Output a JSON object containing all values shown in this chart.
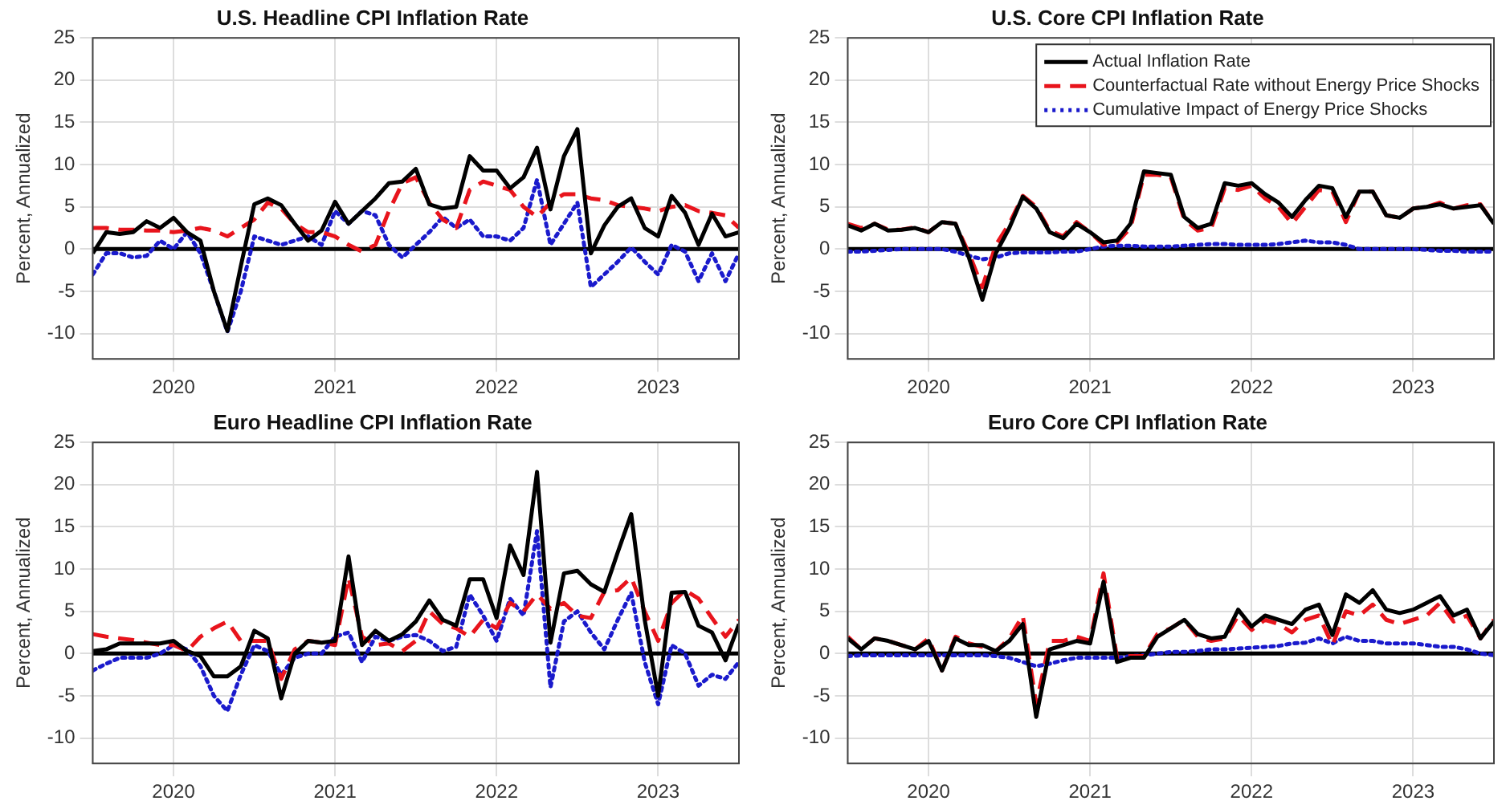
{
  "chart_data": [
    {
      "type": "line",
      "title": "U.S. Headline CPI Inflation Rate",
      "ylabel": "Percent, Annualized",
      "x": [
        "2019-07",
        "2019-08",
        "2019-09",
        "2019-10",
        "2019-11",
        "2019-12",
        "2020-01",
        "2020-02",
        "2020-03",
        "2020-04",
        "2020-05",
        "2020-06",
        "2020-07",
        "2020-08",
        "2020-09",
        "2020-10",
        "2020-11",
        "2020-12",
        "2021-01",
        "2021-02",
        "2021-03",
        "2021-04",
        "2021-05",
        "2021-06",
        "2021-07",
        "2021-08",
        "2021-09",
        "2021-10",
        "2021-11",
        "2021-12",
        "2022-01",
        "2022-02",
        "2022-03",
        "2022-04",
        "2022-05",
        "2022-06",
        "2022-07",
        "2022-08",
        "2022-09",
        "2022-10",
        "2022-11",
        "2022-12",
        "2023-01",
        "2023-02",
        "2023-03",
        "2023-04",
        "2023-05",
        "2023-06",
        "2023-07"
      ],
      "xlim": [
        "2019-07",
        "2023-07"
      ],
      "xticks": [
        "2020",
        "2021",
        "2022",
        "2023"
      ],
      "ylim": [
        -13,
        25
      ],
      "yticks": [
        -10,
        -5,
        0,
        5,
        10,
        15,
        20,
        25
      ],
      "grid": true,
      "ref_lines": [
        {
          "axis": "y",
          "value": 0,
          "color": "#000000"
        }
      ],
      "series": [
        {
          "color": "#000000",
          "line_style": "solid",
          "values": [
            -0.5,
            2.0,
            1.8,
            2.0,
            3.3,
            2.5,
            3.7,
            2.0,
            1.0,
            -5,
            -9.7,
            -2,
            5.3,
            6.0,
            5.2,
            3,
            1.0,
            2.2,
            5.6,
            3,
            4.5,
            6,
            7.8,
            8,
            9.5,
            5.3,
            4.8,
            5.0,
            11,
            9.3,
            9.3,
            7.2,
            8.5,
            12.0,
            4.7,
            11,
            14.2,
            -0.5,
            2.8,
            5,
            6,
            2.5,
            1.5,
            6.3,
            4.3,
            0.5,
            4.2,
            1.5,
            2.0
          ]
        },
        {
          "color": "#e8141c",
          "line_style": "dashed",
          "values": [
            2.5,
            2.5,
            2.3,
            2.3,
            2.2,
            2.2,
            2.0,
            2.2,
            2.5,
            2.2,
            1.5,
            2.5,
            3.5,
            5.5,
            4.8,
            3.0,
            2.0,
            2.0,
            1.5,
            0.5,
            -0.3,
            0.5,
            4.5,
            7.8,
            8.5,
            5.5,
            3.5,
            2.5,
            7.0,
            8.0,
            7.5,
            7.0,
            5.0,
            3.8,
            5.5,
            6.5,
            6.5,
            6.0,
            5.8,
            5.2,
            5.0,
            4.8,
            4.5,
            5.0,
            5.2,
            4.5,
            4.3,
            4.0,
            2.5
          ]
        },
        {
          "color": "#1a1acc",
          "line_style": "dotted",
          "values": [
            -3,
            -0.5,
            -0.5,
            -1.0,
            -0.8,
            1.0,
            0.0,
            2.0,
            -0.5,
            -5,
            -9.8,
            -5,
            1.5,
            1.0,
            0.5,
            1.0,
            1.5,
            0.5,
            4.5,
            3.0,
            4.5,
            4.0,
            0.5,
            -1.0,
            0.5,
            2.0,
            3.8,
            2.5,
            3.5,
            1.5,
            1.5,
            1.0,
            2.5,
            8.2,
            0.5,
            3.0,
            5.5,
            -4.5,
            -3.0,
            -1.5,
            0.2,
            -1.5,
            -3.0,
            0.5,
            -0.3,
            -3.8,
            -0.5,
            -3.8,
            -0.5
          ]
        }
      ]
    },
    {
      "type": "line",
      "title": "U.S. Core CPI Inflation Rate",
      "ylabel": "Percent, Annualized",
      "x": [
        "2019-07",
        "2019-08",
        "2019-09",
        "2019-10",
        "2019-11",
        "2019-12",
        "2020-01",
        "2020-02",
        "2020-03",
        "2020-04",
        "2020-05",
        "2020-06",
        "2020-07",
        "2020-08",
        "2020-09",
        "2020-10",
        "2020-11",
        "2020-12",
        "2021-01",
        "2021-02",
        "2021-03",
        "2021-04",
        "2021-05",
        "2021-06",
        "2021-07",
        "2021-08",
        "2021-09",
        "2021-10",
        "2021-11",
        "2021-12",
        "2022-01",
        "2022-02",
        "2022-03",
        "2022-04",
        "2022-05",
        "2022-06",
        "2022-07",
        "2022-08",
        "2022-09",
        "2022-10",
        "2022-11",
        "2022-12",
        "2023-01",
        "2023-02",
        "2023-03",
        "2023-04",
        "2023-05",
        "2023-06",
        "2023-07"
      ],
      "xlim": [
        "2019-07",
        "2023-07"
      ],
      "xticks": [
        "2020",
        "2021",
        "2022",
        "2023"
      ],
      "ylim": [
        -13,
        25
      ],
      "yticks": [
        -10,
        -5,
        0,
        5,
        10,
        15,
        20,
        25
      ],
      "grid": true,
      "legend": "top right",
      "ref_lines": [
        {
          "axis": "y",
          "value": 0,
          "color": "#000000"
        }
      ],
      "series": [
        {
          "name": "Actual Inflation Rate",
          "color": "#000000",
          "line_style": "solid",
          "values": [
            2.8,
            2.2,
            3.0,
            2.2,
            2.3,
            2.5,
            2.0,
            3.2,
            3.0,
            -1.0,
            -6.0,
            -0.5,
            2.5,
            6.2,
            4.8,
            2.0,
            1.3,
            3.0,
            2.0,
            0.8,
            1.0,
            3.0,
            9.2,
            9.0,
            8.8,
            3.8,
            2.5,
            3.0,
            7.8,
            7.5,
            7.8,
            6.5,
            5.5,
            3.8,
            5.8,
            7.5,
            7.2,
            3.8,
            6.8,
            6.8,
            4.0,
            3.7,
            4.8,
            5.0,
            5.3,
            4.8,
            5.0,
            5.2,
            3.0
          ]
        },
        {
          "name": "Counterfactual Rate without Energy Price Shocks",
          "color": "#e8141c",
          "line_style": "dashed",
          "values": [
            3.0,
            2.5,
            3.0,
            2.3,
            2.3,
            2.6,
            2.0,
            3.2,
            3.0,
            -0.5,
            -4.5,
            0.5,
            3.0,
            6.3,
            5.0,
            2.2,
            1.5,
            3.2,
            2.0,
            0.5,
            0.8,
            2.5,
            8.8,
            8.8,
            8.5,
            3.5,
            2.2,
            2.5,
            7.2,
            7.0,
            7.5,
            6.0,
            5.0,
            3.0,
            5.0,
            7.0,
            6.8,
            3.2,
            6.8,
            6.8,
            4.0,
            3.7,
            4.8,
            5.0,
            5.5,
            4.8,
            5.2,
            5.3,
            3.0
          ]
        },
        {
          "name": "Cumulative Impact of Energy Price Shocks",
          "color": "#1a1acc",
          "line_style": "dotted",
          "values": [
            -0.3,
            -0.3,
            -0.2,
            -0.1,
            0,
            0,
            0,
            0,
            -0.3,
            -0.8,
            -1.2,
            -1.0,
            -0.5,
            -0.4,
            -0.4,
            -0.4,
            -0.3,
            -0.3,
            0,
            0.3,
            0.4,
            0.4,
            0.3,
            0.3,
            0.3,
            0.4,
            0.5,
            0.6,
            0.6,
            0.5,
            0.5,
            0.5,
            0.6,
            0.8,
            1.0,
            0.8,
            0.8,
            0.5,
            0,
            0,
            0,
            0,
            0,
            -0.1,
            -0.2,
            -0.2,
            -0.3,
            -0.3,
            -0.3
          ]
        }
      ]
    },
    {
      "type": "line",
      "title": "Euro Headline CPI Inflation Rate",
      "ylabel": "Percent, Annualized",
      "x": [
        "2019-07",
        "2019-08",
        "2019-09",
        "2019-10",
        "2019-11",
        "2019-12",
        "2020-01",
        "2020-02",
        "2020-03",
        "2020-04",
        "2020-05",
        "2020-06",
        "2020-07",
        "2020-08",
        "2020-09",
        "2020-10",
        "2020-11",
        "2020-12",
        "2021-01",
        "2021-02",
        "2021-03",
        "2021-04",
        "2021-05",
        "2021-06",
        "2021-07",
        "2021-08",
        "2021-09",
        "2021-10",
        "2021-11",
        "2021-12",
        "2022-01",
        "2022-02",
        "2022-03",
        "2022-04",
        "2022-05",
        "2022-06",
        "2022-07",
        "2022-08",
        "2022-09",
        "2022-10",
        "2022-11",
        "2022-12",
        "2023-01",
        "2023-02",
        "2023-03",
        "2023-04",
        "2023-05",
        "2023-06",
        "2023-07"
      ],
      "xlim": [
        "2019-07",
        "2023-07"
      ],
      "xticks": [
        "2020",
        "2021",
        "2022",
        "2023"
      ],
      "ylim": [
        -13,
        25
      ],
      "yticks": [
        -10,
        -5,
        0,
        5,
        10,
        15,
        20,
        25
      ],
      "grid": true,
      "ref_lines": [
        {
          "axis": "y",
          "value": 0,
          "color": "#000000"
        }
      ],
      "series": [
        {
          "color": "#000000",
          "line_style": "solid",
          "values": [
            0.3,
            0.5,
            1.2,
            1.2,
            1.2,
            1.2,
            1.5,
            0.3,
            -0.3,
            -2.7,
            -2.7,
            -1.5,
            2.7,
            1.8,
            -5.3,
            0.0,
            1.5,
            1.3,
            1.5,
            11.5,
            1.0,
            2.7,
            1.5,
            2.3,
            3.8,
            6.3,
            4.0,
            3.3,
            8.8,
            8.8,
            4.2,
            12.8,
            9.3,
            21.5,
            1.3,
            9.5,
            9.8,
            8.2,
            7.3,
            12.0,
            16.5,
            4.0,
            -5.0,
            7.2,
            7.3,
            3.3,
            2.5,
            -0.8,
            3.5
          ]
        },
        {
          "color": "#e8141c",
          "line_style": "dashed",
          "values": [
            2.3,
            2.0,
            1.8,
            1.6,
            1.3,
            1.0,
            1.0,
            0.3,
            2.0,
            3.0,
            3.8,
            1.5,
            1.5,
            1.5,
            -3.0,
            0.5,
            1.5,
            1.3,
            1.0,
            9.0,
            2.0,
            1.0,
            1.2,
            0.3,
            1.5,
            5.0,
            3.5,
            3.0,
            2.0,
            4.0,
            3.0,
            6.0,
            5.0,
            7.0,
            5.3,
            6.0,
            4.5,
            4.2,
            7.3,
            7.5,
            9.0,
            5.0,
            1.5,
            6.0,
            7.5,
            6.5,
            4.2,
            2.0,
            4.0
          ]
        },
        {
          "color": "#1a1acc",
          "line_style": "dotted",
          "values": [
            -2.0,
            -1.2,
            -0.5,
            -0.5,
            -0.5,
            0,
            1.0,
            0.5,
            -1.5,
            -5.0,
            -6.8,
            -2.5,
            1.0,
            0.3,
            -2.5,
            -0.5,
            0,
            0,
            2.0,
            2.5,
            -1.0,
            2.0,
            1.5,
            2.0,
            2.2,
            1.5,
            0.3,
            0.8,
            7.0,
            4.5,
            1.5,
            6.5,
            4.5,
            14.5,
            -4.0,
            3.8,
            5.0,
            2.5,
            0.5,
            4.0,
            7.2,
            -1.0,
            -6.0,
            1.0,
            0.0,
            -3.8,
            -2.5,
            -3.0,
            -1.0
          ]
        }
      ]
    },
    {
      "type": "line",
      "title": "Euro Core CPI Inflation Rate",
      "ylabel": "Percent, Annualized",
      "x": [
        "2019-07",
        "2019-08",
        "2019-09",
        "2019-10",
        "2019-11",
        "2019-12",
        "2020-01",
        "2020-02",
        "2020-03",
        "2020-04",
        "2020-05",
        "2020-06",
        "2020-07",
        "2020-08",
        "2020-09",
        "2020-10",
        "2020-11",
        "2020-12",
        "2021-01",
        "2021-02",
        "2021-03",
        "2021-04",
        "2021-05",
        "2021-06",
        "2021-07",
        "2021-08",
        "2021-09",
        "2021-10",
        "2021-11",
        "2021-12",
        "2022-01",
        "2022-02",
        "2022-03",
        "2022-04",
        "2022-05",
        "2022-06",
        "2022-07",
        "2022-08",
        "2022-09",
        "2022-10",
        "2022-11",
        "2022-12",
        "2023-01",
        "2023-02",
        "2023-03",
        "2023-04",
        "2023-05",
        "2023-06",
        "2023-07"
      ],
      "xlim": [
        "2019-07",
        "2023-07"
      ],
      "xticks": [
        "2020",
        "2021",
        "2022",
        "2023"
      ],
      "ylim": [
        -13,
        25
      ],
      "yticks": [
        -10,
        -5,
        0,
        5,
        10,
        15,
        20,
        25
      ],
      "grid": true,
      "ref_lines": [
        {
          "axis": "y",
          "value": 0,
          "color": "#000000"
        }
      ],
      "series": [
        {
          "color": "#000000",
          "line_style": "solid",
          "values": [
            1.8,
            0.5,
            1.8,
            1.5,
            1.0,
            0.5,
            1.5,
            -2.0,
            1.8,
            1.0,
            1.0,
            0.3,
            1.5,
            3.5,
            -7.5,
            0.5,
            1.0,
            1.5,
            1.2,
            8.5,
            -1.0,
            -0.5,
            -0.5,
            2.0,
            3.0,
            4.0,
            2.3,
            1.8,
            2.0,
            5.2,
            3.2,
            4.5,
            4.0,
            3.5,
            5.2,
            5.8,
            2.2,
            7.0,
            6.0,
            7.5,
            5.2,
            4.8,
            5.2,
            6.0,
            6.8,
            4.5,
            5.2,
            1.8,
            3.8
          ]
        },
        {
          "color": "#e8141c",
          "line_style": "dashed",
          "values": [
            2.0,
            0.5,
            1.8,
            1.5,
            1.0,
            0.5,
            1.8,
            -2.0,
            2.0,
            1.2,
            0.8,
            0.3,
            1.8,
            4.5,
            -6.0,
            1.5,
            1.5,
            2.0,
            1.5,
            9.5,
            -0.5,
            -0.3,
            -0.3,
            2.3,
            3.0,
            4.0,
            2.0,
            1.5,
            1.8,
            4.5,
            2.8,
            4.0,
            3.5,
            2.5,
            4.0,
            4.5,
            1.0,
            5.0,
            4.5,
            5.8,
            4.0,
            3.5,
            4.0,
            4.5,
            6.0,
            3.8,
            4.5,
            1.8,
            4.0
          ]
        },
        {
          "color": "#1a1acc",
          "line_style": "dotted",
          "values": [
            -0.3,
            -0.2,
            -0.2,
            -0.2,
            -0.2,
            -0.2,
            -0.2,
            -0.2,
            -0.2,
            -0.2,
            -0.2,
            -0.3,
            -0.5,
            -1.0,
            -1.5,
            -1.2,
            -0.8,
            -0.5,
            -0.5,
            -0.5,
            -0.5,
            -0.3,
            -0.2,
            0,
            0.2,
            0.2,
            0.3,
            0.5,
            0.5,
            0.6,
            0.7,
            0.8,
            0.9,
            1.2,
            1.3,
            1.8,
            1.2,
            2.0,
            1.5,
            1.5,
            1.2,
            1.2,
            1.2,
            1.0,
            0.8,
            0.8,
            0.5,
            0,
            -0.2
          ]
        }
      ]
    }
  ]
}
